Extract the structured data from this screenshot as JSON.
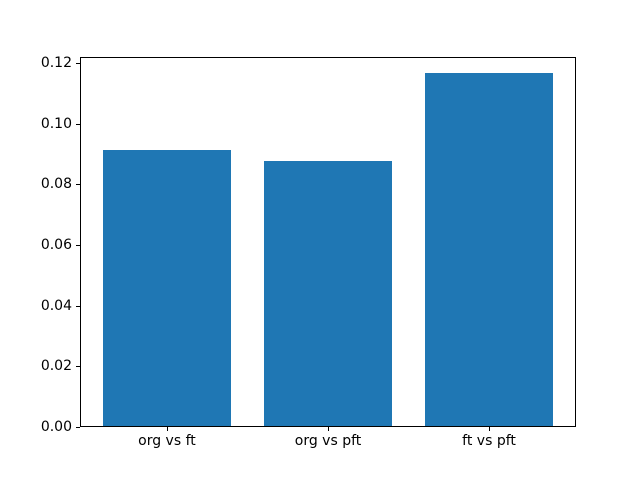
{
  "chart_data": {
    "type": "bar",
    "categories": [
      "org vs ft",
      "org vs pft",
      "ft vs pft"
    ],
    "values": [
      0.0915,
      0.0877,
      0.1166
    ],
    "ytick_values": [
      0.0,
      0.02,
      0.04,
      0.06,
      0.08,
      0.1,
      0.12
    ],
    "ytick_labels": [
      "0.00",
      "0.02",
      "0.04",
      "0.06",
      "0.08",
      "0.10",
      "0.12"
    ],
    "ylim": [
      0,
      0.122
    ],
    "xlim": [
      -0.54,
      2.54
    ],
    "bar_width": 0.8,
    "bar_color": "#1f77b4",
    "axis_color": "#000000",
    "text_color": "#000000",
    "background_color": "#ffffff",
    "grid": false,
    "legend": null
  }
}
